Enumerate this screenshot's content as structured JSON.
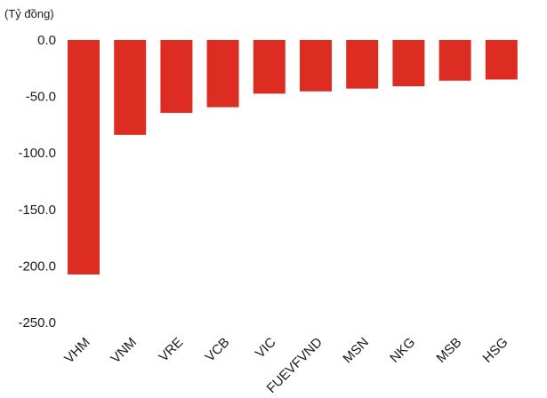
{
  "chart_data": {
    "type": "bar",
    "unit_label": "(Tỷ đồng)",
    "categories": [
      "VHM",
      "VNM",
      "VRE",
      "VCB",
      "VIC",
      "FUEVFVND",
      "MSN",
      "NKG",
      "MSB",
      "HSG"
    ],
    "values": [
      -207.5,
      -84.0,
      -64.5,
      -59.5,
      -47.5,
      -45.5,
      -43.0,
      -41.0,
      -36.0,
      -35.0
    ],
    "yticks": [
      "0.0",
      "-50.0",
      "-100.0",
      "-150.0",
      "-200.0",
      "-250.0"
    ],
    "ylim": [
      -250,
      0
    ],
    "grid": false,
    "bar_color": "#dd2c22"
  }
}
